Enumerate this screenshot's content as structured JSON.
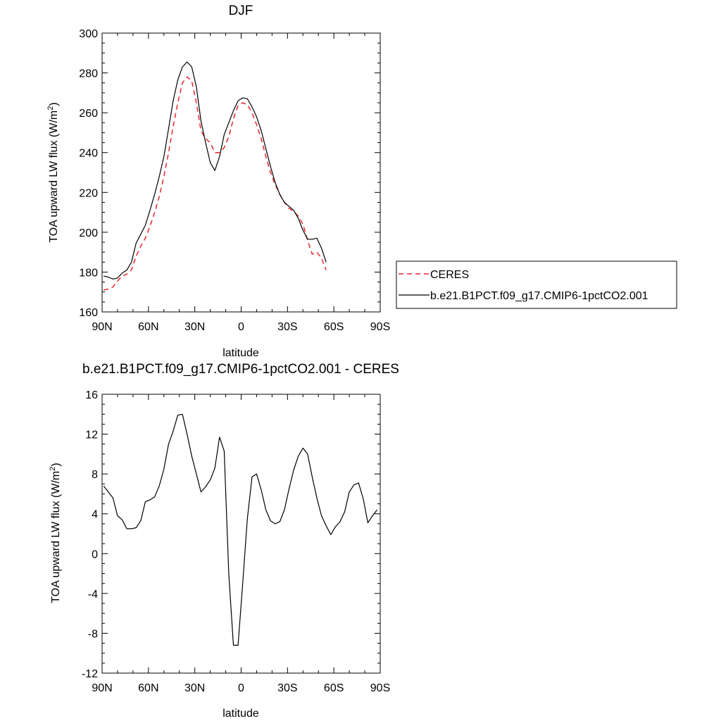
{
  "chart_data": [
    {
      "type": "line",
      "title": "DJF",
      "xlabel": "latitude",
      "ylabel": "TOA upward LW flux (W/m",
      "ylabel_sup": "2",
      "ylabel_close": ")",
      "xlim": [
        90,
        -90
      ],
      "ylim": [
        160,
        300
      ],
      "xticks": [
        90,
        60,
        30,
        0,
        -30,
        -60,
        -90
      ],
      "xtick_labels": [
        "90N",
        "60N",
        "30N",
        "0",
        "30S",
        "60S",
        "90S"
      ],
      "yticks": [
        160,
        180,
        200,
        220,
        240,
        260,
        280,
        300
      ],
      "ytick_labels": [
        "160",
        "180",
        "200",
        "220",
        "240",
        "260",
        "280",
        "300"
      ],
      "legend": {
        "placement": "right",
        "entries": [
          {
            "label": "CERES",
            "color": "#e8262b",
            "dash": true
          },
          {
            "label": "b.e21.B1PCT.f09_g17.CMIP6-1pctCO2.001",
            "color": "#000000",
            "dash": false
          }
        ]
      },
      "series": [
        {
          "name": "CERES",
          "color": "#e8262b",
          "dash": true,
          "points": [
            [
              89,
              171
            ],
            [
              86,
              171.5
            ],
            [
              83,
              172.5
            ],
            [
              80,
              175.5
            ],
            [
              77,
              178
            ],
            [
              74,
              179
            ],
            [
              71,
              181
            ],
            [
              68,
              188
            ],
            [
              65,
              193
            ],
            [
              62,
              197
            ],
            [
              59,
              203
            ],
            [
              56,
              210
            ],
            [
              53,
              218
            ],
            [
              50,
              228
            ],
            [
              47,
              240
            ],
            [
              44,
              253
            ],
            [
              41,
              265
            ],
            [
              38,
              275
            ],
            [
              35,
              278
            ],
            [
              32,
              276
            ],
            [
              29,
              265
            ],
            [
              26,
              251
            ],
            [
              23,
              247
            ],
            [
              20,
              245
            ],
            [
              17,
              240
            ],
            [
              14,
              240
            ],
            [
              11,
              242.5
            ],
            [
              8,
              248
            ],
            [
              5,
              257
            ],
            [
              2,
              263.5
            ],
            [
              -1,
              265
            ],
            [
              -4,
              264
            ],
            [
              -7,
              260
            ],
            [
              -10,
              254
            ],
            [
              -13,
              247
            ],
            [
              -16,
              238
            ],
            [
              -19,
              230
            ],
            [
              -22,
              224
            ],
            [
              -25,
              219
            ],
            [
              -28,
              215
            ],
            [
              -31,
              212
            ],
            [
              -34,
              210.5
            ],
            [
              -37,
              208
            ],
            [
              -40,
              204
            ],
            [
              -43,
              196
            ],
            [
              -46,
              189
            ],
            [
              -49,
              190
            ],
            [
              -52,
              187
            ],
            [
              -55,
              181
            ]
          ]
        },
        {
          "name": "b.e21.B1PCT.f09_g17.CMIP6-1pctCO2.001",
          "color": "#000000",
          "dash": false,
          "points": [
            [
              89,
              178
            ],
            [
              86,
              177.5
            ],
            [
              83,
              176.5
            ],
            [
              80,
              177
            ],
            [
              77,
              179.5
            ],
            [
              74,
              181
            ],
            [
              71,
              185
            ],
            [
              68,
              194.5
            ],
            [
              65,
              199
            ],
            [
              62,
              203.5
            ],
            [
              59,
              211
            ],
            [
              56,
              219
            ],
            [
              53,
              228
            ],
            [
              50,
              238
            ],
            [
              47,
              252
            ],
            [
              44,
              266
            ],
            [
              41,
              276.5
            ],
            [
              38,
              283
            ],
            [
              35,
              285.5
            ],
            [
              32,
              283
            ],
            [
              29,
              273
            ],
            [
              26,
              256
            ],
            [
              23,
              245
            ],
            [
              20,
              235
            ],
            [
              17,
              231
            ],
            [
              14,
              238
            ],
            [
              11,
              249
            ],
            [
              8,
              255
            ],
            [
              5,
              261
            ],
            [
              2,
              266
            ],
            [
              -1,
              267.5
            ],
            [
              -4,
              267
            ],
            [
              -7,
              263
            ],
            [
              -10,
              258
            ],
            [
              -13,
              251
            ],
            [
              -16,
              242
            ],
            [
              -19,
              233
            ],
            [
              -22,
              225
            ],
            [
              -25,
              219
            ],
            [
              -28,
              215
            ],
            [
              -31,
              213
            ],
            [
              -34,
              211
            ],
            [
              -37,
              207
            ],
            [
              -40,
              201
            ],
            [
              -43,
              196.5
            ],
            [
              -46,
              196.5
            ],
            [
              -49,
              197
            ],
            [
              -52,
              192
            ],
            [
              -55,
              185
            ]
          ]
        }
      ]
    },
    {
      "type": "line",
      "title": "b.e21.B1PCT.f09_g17.CMIP6-1pctCO2.001 - CERES",
      "xlabel": "latitude",
      "ylabel": "TOA upward LW flux (W/m",
      "ylabel_sup": "2",
      "ylabel_close": ")",
      "xlim": [
        90,
        -90
      ],
      "ylim": [
        -12,
        16
      ],
      "xticks": [
        90,
        60,
        30,
        0,
        -30,
        -60,
        -90
      ],
      "xtick_labels": [
        "90N",
        "60N",
        "30N",
        "0",
        "30S",
        "60S",
        "90S"
      ],
      "yticks": [
        -12,
        -8,
        -4,
        0,
        4,
        8,
        12,
        16
      ],
      "ytick_labels": [
        "-12",
        "-8",
        "-4",
        "0",
        "4",
        "8",
        "12",
        "16"
      ],
      "series": [
        {
          "color": "#000000",
          "dash": false,
          "points": [
            [
              89,
              6.8
            ],
            [
              86,
              6.2
            ],
            [
              83,
              5.6
            ],
            [
              80,
              3.8
            ],
            [
              77,
              3.4
            ],
            [
              74,
              2.5
            ],
            [
              71,
              2.5
            ],
            [
              68,
              2.6
            ],
            [
              65,
              3.3
            ],
            [
              62,
              5.2
            ],
            [
              59,
              5.4
            ],
            [
              56,
              5.7
            ],
            [
              53,
              6.8
            ],
            [
              50,
              8.5
            ],
            [
              47,
              11
            ],
            [
              44,
              12.3
            ],
            [
              41,
              13.9
            ],
            [
              38,
              14
            ],
            [
              35,
              12
            ],
            [
              32,
              9.8
            ],
            [
              29,
              8
            ],
            [
              26,
              6.2
            ],
            [
              23,
              6.7
            ],
            [
              20,
              7.4
            ],
            [
              17,
              8.6
            ],
            [
              14,
              11.7
            ],
            [
              11,
              10.3
            ],
            [
              8,
              -2
            ],
            [
              5,
              -9.2
            ],
            [
              2,
              -9.2
            ],
            [
              -1,
              -3
            ],
            [
              -4,
              3.5
            ],
            [
              -7,
              7.7
            ],
            [
              -10,
              8
            ],
            [
              -13,
              6.4
            ],
            [
              -16,
              4.4
            ],
            [
              -19,
              3.3
            ],
            [
              -22,
              3
            ],
            [
              -25,
              3.2
            ],
            [
              -28,
              4.4
            ],
            [
              -31,
              6.5
            ],
            [
              -34,
              8.4
            ],
            [
              -37,
              9.8
            ],
            [
              -40,
              10.6
            ],
            [
              -43,
              10
            ],
            [
              -46,
              7.7
            ],
            [
              -49,
              5.6
            ],
            [
              -52,
              3.8
            ],
            [
              -55,
              2.8
            ],
            [
              -58,
              1.9
            ],
            [
              -61,
              2.7
            ],
            [
              -64,
              3.2
            ],
            [
              -67,
              4.2
            ],
            [
              -70,
              6.2
            ],
            [
              -73,
              6.9
            ],
            [
              -76,
              7.1
            ],
            [
              -79,
              5.5
            ],
            [
              -82,
              3.1
            ],
            [
              -85,
              3.8
            ],
            [
              -88,
              4.4
            ]
          ]
        }
      ]
    }
  ]
}
